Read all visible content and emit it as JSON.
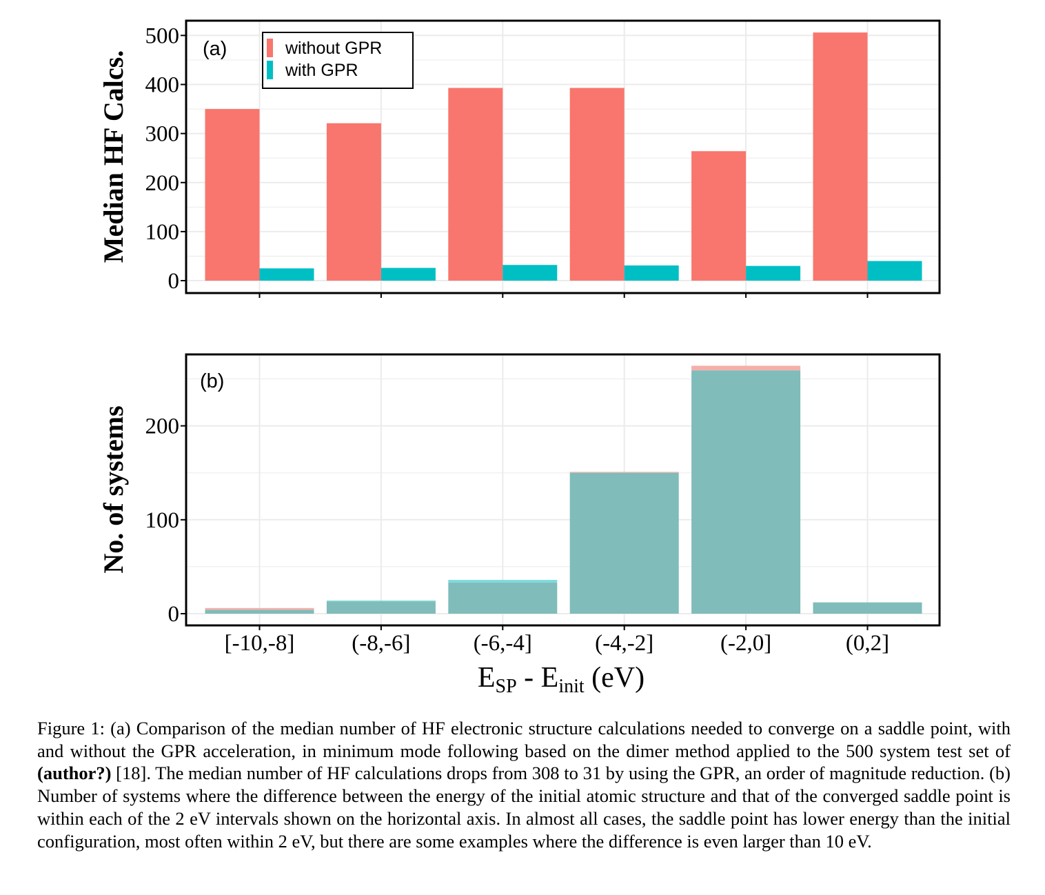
{
  "chart_data": [
    {
      "panel_label": "(a)",
      "type": "bar",
      "ylabel": "Median HF Calcs.",
      "ylim": [
        0,
        525
      ],
      "yticks": [
        0,
        100,
        200,
        300,
        400,
        500
      ],
      "categories": [
        "[-10,-8]",
        "(-8,-6]",
        "(-6,-4]",
        "(-4,-2]",
        "(-2,0]",
        "(0,2]"
      ],
      "series": [
        {
          "name": "without GPR",
          "color": "#F8766D",
          "values": [
            350,
            321,
            393,
            393,
            264,
            506
          ]
        },
        {
          "name": "with GPR",
          "color": "#00BFC4",
          "values": [
            25,
            26,
            32,
            31,
            30,
            40
          ]
        }
      ],
      "legend_position": "top-left",
      "grid": true
    },
    {
      "panel_label": "(b)",
      "type": "bar",
      "ylabel": "No. of systems",
      "xlabel": "E_SP - E_init (eV)",
      "xlabel_parts": {
        "e1": "E",
        "sub1": "SP",
        "mid": " - E",
        "sub2": "init",
        "unit": " (eV)"
      },
      "ylim": [
        -9,
        270
      ],
      "yticks": [
        0,
        100,
        200
      ],
      "categories": [
        "[-10,-8]",
        "(-8,-6]",
        "(-6,-4]",
        "(-4,-2]",
        "(-2,0]",
        "(0,2]"
      ],
      "series": [
        {
          "name": "without GPR",
          "color": "#F8766D",
          "values": [
            6,
            13,
            33,
            151,
            264,
            12
          ]
        },
        {
          "name": "with GPR",
          "color": "#00BFC4",
          "values": [
            4,
            14,
            36,
            150,
            259,
            12
          ]
        }
      ],
      "overlap_color": "#7FBCBA",
      "grid": true
    }
  ],
  "caption": {
    "part1": "Figure 1: (a) Comparison of the median number of HF electronic structure calculations needed to converge on a saddle point, with and without the GPR acceleration, in minimum mode following based on the dimer method applied to the 500 system test set of ",
    "bold": "(author?)",
    "part2": " [18]. The median number of HF calculations drops from 308 to 31 by using the GPR, an order of magnitude reduction. (b) Number of systems where the difference between the energy of the initial atomic structure and that of the converged saddle point is within each of the 2 eV intervals shown on the horizontal axis. In almost all cases, the saddle point has lower energy than the initial configuration, most often within 2 eV, but there are some examples where the difference is even larger than 10 eV."
  }
}
